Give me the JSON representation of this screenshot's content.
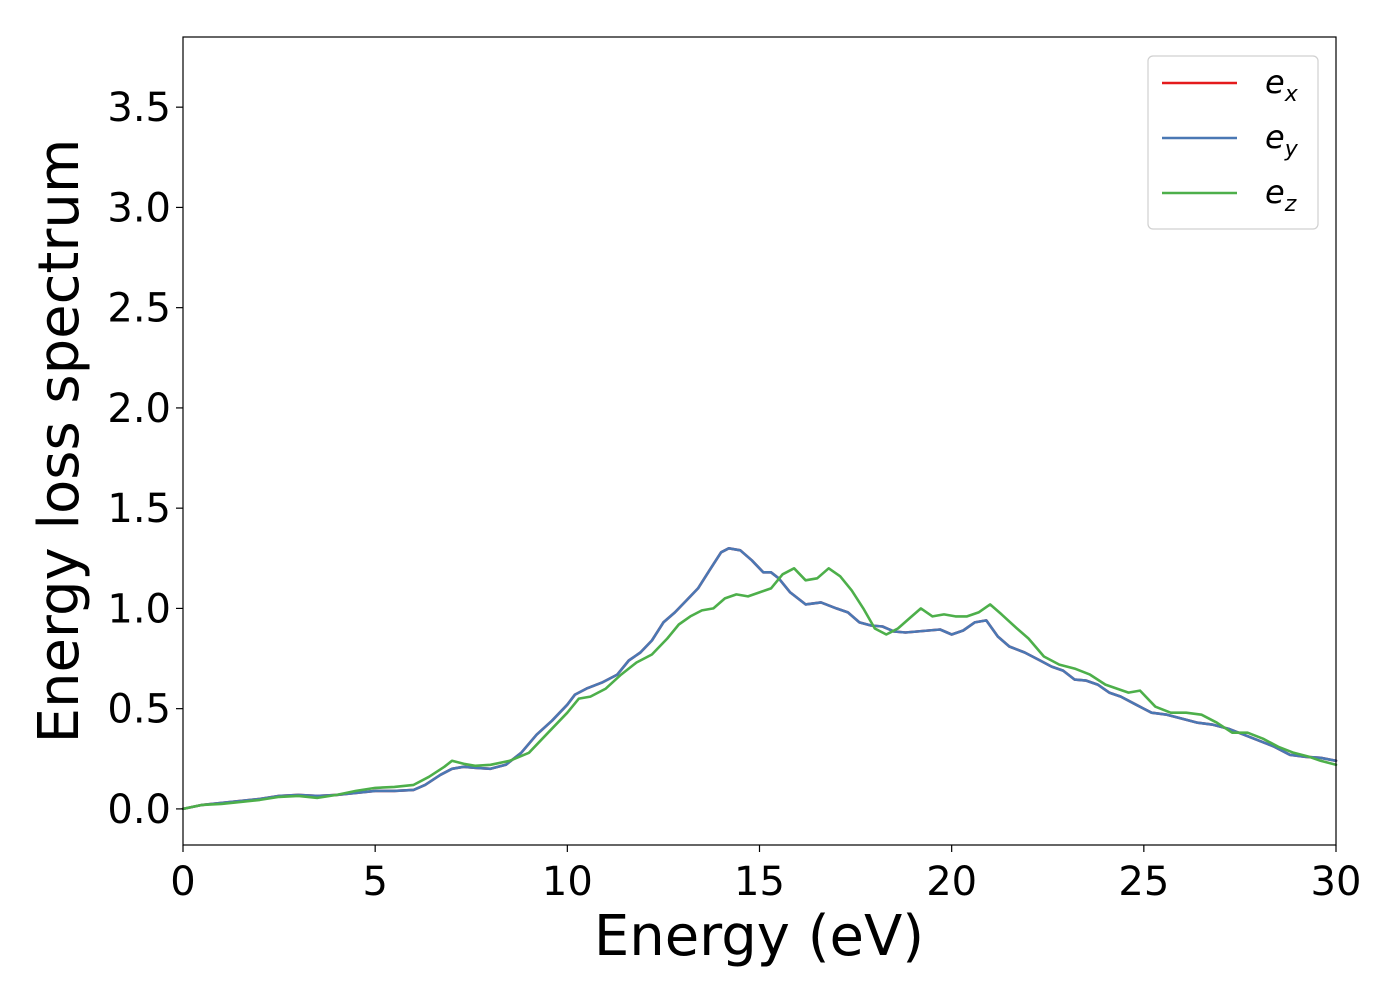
{
  "chart_data": {
    "type": "line",
    "title": "",
    "xlabel": "Energy (eV)",
    "ylabel": "Energy loss spectrum",
    "xlim": [
      0,
      30
    ],
    "ylim": [
      -0.18,
      3.85
    ],
    "xticks": [
      0,
      5,
      10,
      15,
      20,
      25,
      30
    ],
    "xtick_labels": [
      "0",
      "5",
      "10",
      "15",
      "20",
      "25",
      "30"
    ],
    "yticks": [
      0.0,
      0.5,
      1.0,
      1.5,
      2.0,
      2.5,
      3.0,
      3.5
    ],
    "ytick_labels": [
      "0.0",
      "0.5",
      "1.0",
      "1.5",
      "2.0",
      "2.5",
      "3.0",
      "3.5"
    ],
    "grid": false,
    "legend_position": "top-right",
    "series": [
      {
        "name": "e",
        "subscript": "x",
        "color": "#e41a1c",
        "x": [
          0,
          0.5,
          1.0,
          1.5,
          2.0,
          2.5,
          3.0,
          3.5,
          4.0,
          4.5,
          5.0,
          5.5,
          6.0,
          6.3,
          6.7,
          7.0,
          7.3,
          7.6,
          8.0,
          8.4,
          8.8,
          9.2,
          9.6,
          10.0,
          10.2,
          10.5,
          10.9,
          11.3,
          11.6,
          11.9,
          12.2,
          12.5,
          12.8,
          13.1,
          13.4,
          13.7,
          14.0,
          14.2,
          14.5,
          14.8,
          15.1,
          15.3,
          15.5,
          15.8,
          16.2,
          16.6,
          17.0,
          17.3,
          17.6,
          17.9,
          18.2,
          18.5,
          18.8,
          19.1,
          19.4,
          19.7,
          20.0,
          20.3,
          20.6,
          20.9,
          21.2,
          21.5,
          21.9,
          22.3,
          22.6,
          22.9,
          23.2,
          23.5,
          23.8,
          24.1,
          24.4,
          24.8,
          25.2,
          25.6,
          26.0,
          26.4,
          26.8,
          27.2,
          27.6,
          28.0,
          28.4,
          28.8,
          29.2,
          29.6,
          30.0
        ],
        "y": [
          0.0,
          0.02,
          0.03,
          0.04,
          0.05,
          0.065,
          0.07,
          0.065,
          0.07,
          0.08,
          0.09,
          0.09,
          0.095,
          0.12,
          0.17,
          0.2,
          0.21,
          0.205,
          0.2,
          0.22,
          0.28,
          0.37,
          0.44,
          0.52,
          0.57,
          0.6,
          0.63,
          0.67,
          0.74,
          0.78,
          0.84,
          0.93,
          0.98,
          1.04,
          1.1,
          1.19,
          1.28,
          1.3,
          1.29,
          1.24,
          1.18,
          1.18,
          1.15,
          1.08,
          1.02,
          1.03,
          1.0,
          0.98,
          0.93,
          0.915,
          0.91,
          0.885,
          0.88,
          0.885,
          0.89,
          0.895,
          0.87,
          0.89,
          0.93,
          0.94,
          0.86,
          0.81,
          0.78,
          0.74,
          0.71,
          0.69,
          0.645,
          0.64,
          0.62,
          0.58,
          0.56,
          0.52,
          0.48,
          0.47,
          0.45,
          0.43,
          0.42,
          0.4,
          0.37,
          0.34,
          0.31,
          0.27,
          0.26,
          0.255,
          0.24
        ]
      },
      {
        "name": "e",
        "subscript": "y",
        "color": "#4a78b4",
        "x": [
          0,
          0.5,
          1.0,
          1.5,
          2.0,
          2.5,
          3.0,
          3.5,
          4.0,
          4.5,
          5.0,
          5.5,
          6.0,
          6.3,
          6.7,
          7.0,
          7.3,
          7.6,
          8.0,
          8.4,
          8.8,
          9.2,
          9.6,
          10.0,
          10.2,
          10.5,
          10.9,
          11.3,
          11.6,
          11.9,
          12.2,
          12.5,
          12.8,
          13.1,
          13.4,
          13.7,
          14.0,
          14.2,
          14.5,
          14.8,
          15.1,
          15.3,
          15.5,
          15.8,
          16.2,
          16.6,
          17.0,
          17.3,
          17.6,
          17.9,
          18.2,
          18.5,
          18.8,
          19.1,
          19.4,
          19.7,
          20.0,
          20.3,
          20.6,
          20.9,
          21.2,
          21.5,
          21.9,
          22.3,
          22.6,
          22.9,
          23.2,
          23.5,
          23.8,
          24.1,
          24.4,
          24.8,
          25.2,
          25.6,
          26.0,
          26.4,
          26.8,
          27.2,
          27.6,
          28.0,
          28.4,
          28.8,
          29.2,
          29.6,
          30.0
        ],
        "y": [
          0.0,
          0.02,
          0.03,
          0.04,
          0.05,
          0.065,
          0.07,
          0.065,
          0.07,
          0.08,
          0.09,
          0.09,
          0.095,
          0.12,
          0.17,
          0.2,
          0.21,
          0.205,
          0.2,
          0.22,
          0.28,
          0.37,
          0.44,
          0.52,
          0.57,
          0.6,
          0.63,
          0.67,
          0.74,
          0.78,
          0.84,
          0.93,
          0.98,
          1.04,
          1.1,
          1.19,
          1.28,
          1.3,
          1.29,
          1.24,
          1.18,
          1.18,
          1.15,
          1.08,
          1.02,
          1.03,
          1.0,
          0.98,
          0.93,
          0.915,
          0.91,
          0.885,
          0.88,
          0.885,
          0.89,
          0.895,
          0.87,
          0.89,
          0.93,
          0.94,
          0.86,
          0.81,
          0.78,
          0.74,
          0.71,
          0.69,
          0.645,
          0.64,
          0.62,
          0.58,
          0.56,
          0.52,
          0.48,
          0.47,
          0.45,
          0.43,
          0.42,
          0.4,
          0.37,
          0.34,
          0.31,
          0.27,
          0.26,
          0.255,
          0.24
        ]
      },
      {
        "name": "e",
        "subscript": "z",
        "color": "#4daf4a",
        "x": [
          0,
          0.5,
          1.0,
          1.5,
          2.0,
          2.5,
          3.0,
          3.5,
          4.0,
          4.5,
          5.0,
          5.5,
          6.0,
          6.4,
          6.8,
          7.0,
          7.3,
          7.6,
          8.0,
          8.5,
          9.0,
          9.5,
          10.0,
          10.3,
          10.6,
          11.0,
          11.4,
          11.8,
          12.2,
          12.6,
          12.9,
          13.2,
          13.5,
          13.8,
          14.1,
          14.4,
          14.7,
          15.0,
          15.3,
          15.6,
          15.9,
          16.2,
          16.5,
          16.8,
          17.1,
          17.4,
          17.7,
          18.0,
          18.3,
          18.6,
          18.9,
          19.2,
          19.5,
          19.8,
          20.1,
          20.4,
          20.7,
          21.0,
          21.3,
          21.7,
          22.0,
          22.4,
          22.8,
          23.2,
          23.6,
          24.0,
          24.3,
          24.6,
          24.9,
          25.3,
          25.7,
          26.1,
          26.5,
          26.9,
          27.3,
          27.7,
          28.1,
          28.5,
          28.9,
          29.3,
          29.6,
          30.0
        ],
        "y": [
          0.0,
          0.02,
          0.025,
          0.035,
          0.045,
          0.06,
          0.065,
          0.055,
          0.07,
          0.09,
          0.105,
          0.11,
          0.12,
          0.16,
          0.21,
          0.24,
          0.225,
          0.215,
          0.22,
          0.24,
          0.28,
          0.38,
          0.48,
          0.55,
          0.56,
          0.6,
          0.67,
          0.73,
          0.77,
          0.85,
          0.92,
          0.96,
          0.99,
          1.0,
          1.05,
          1.07,
          1.06,
          1.08,
          1.1,
          1.17,
          1.2,
          1.14,
          1.15,
          1.2,
          1.16,
          1.09,
          1.0,
          0.9,
          0.87,
          0.9,
          0.95,
          1.0,
          0.96,
          0.97,
          0.96,
          0.96,
          0.98,
          1.02,
          0.97,
          0.9,
          0.85,
          0.76,
          0.72,
          0.7,
          0.67,
          0.62,
          0.6,
          0.58,
          0.59,
          0.51,
          0.48,
          0.48,
          0.47,
          0.43,
          0.38,
          0.38,
          0.35,
          0.31,
          0.28,
          0.26,
          0.24,
          0.22
        ]
      }
    ]
  }
}
